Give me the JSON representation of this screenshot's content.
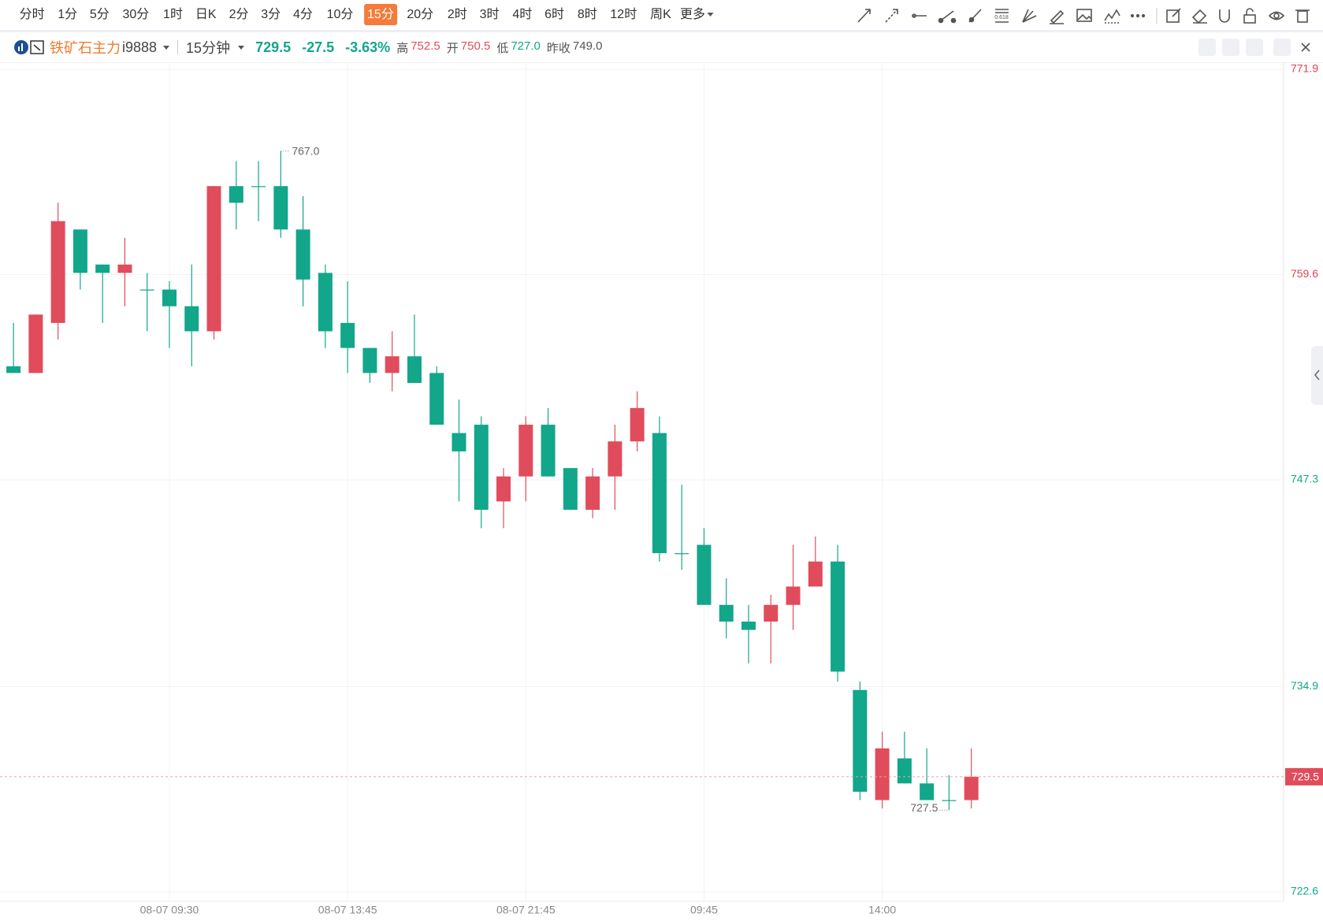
{
  "toolbar": {
    "periods": [
      "分时",
      "1分",
      "5分",
      "30分",
      "1时",
      "日K",
      "2分",
      "3分",
      "4分",
      "10分",
      "15分",
      "20分",
      "2时",
      "3时",
      "4时",
      "6时",
      "8时",
      "12时",
      "周K",
      "更多"
    ],
    "fib_icon": "0.618"
  },
  "info": {
    "name": "铁矿石主力",
    "code": "i9888",
    "period": "15分钟",
    "price": "729.5",
    "change": "-27.5",
    "change_pct": "-3.63%",
    "stats": [
      {
        "label": "高",
        "value": "752.5"
      },
      {
        "label": "开",
        "value": "750.5"
      },
      {
        "label": "低",
        "value": "727.0"
      },
      {
        "label": "昨收",
        "value": "749.0"
      }
    ]
  },
  "chart_data": {
    "type": "candlestick",
    "categories": [
      null,
      null,
      null,
      null,
      null,
      null,
      null,
      "08-07 09:30",
      null,
      null,
      null,
      null,
      null,
      null,
      null,
      "08-07 13:45",
      null,
      null,
      null,
      null,
      null,
      null,
      null,
      "08-07 21:45",
      null,
      null,
      null,
      null,
      null,
      null,
      null,
      "09:45",
      null,
      null,
      null,
      null,
      null,
      null,
      null,
      "14:00",
      null,
      null,
      null,
      null
    ],
    "open": [
      754.1,
      753.7,
      756.7,
      762.3,
      760.2,
      759.7,
      758.7,
      758.7,
      757.7,
      756.2,
      764.9,
      764.9,
      764.9,
      762.3,
      759.7,
      756.7,
      755.2,
      753.7,
      754.7,
      753.7,
      750.1,
      750.6,
      746.0,
      747.5,
      750.6,
      748.0,
      745.5,
      747.5,
      749.6,
      750.1,
      742.9,
      743.4,
      739.8,
      738.8,
      738.8,
      739.8,
      740.9,
      742.4,
      734.7,
      728.1,
      730.6,
      729.1,
      728.1,
      728.1
    ],
    "high": [
      756.7,
      757.2,
      763.9,
      762.3,
      760.2,
      761.8,
      759.7,
      759.2,
      760.2,
      764.9,
      766.4,
      766.4,
      767.0,
      764.3,
      760.2,
      759.2,
      755.2,
      756.2,
      757.2,
      754.1,
      752.1,
      751.1,
      748.0,
      751.1,
      751.6,
      748.0,
      748.0,
      750.6,
      752.6,
      751.1,
      747.0,
      744.4,
      741.4,
      739.8,
      740.4,
      743.4,
      743.9,
      743.4,
      735.2,
      732.2,
      732.2,
      731.2,
      729.6,
      731.2
    ],
    "low": [
      753.7,
      753.7,
      755.7,
      758.7,
      756.7,
      757.7,
      756.2,
      755.2,
      754.1,
      755.7,
      762.3,
      762.8,
      761.8,
      757.7,
      755.2,
      753.7,
      753.1,
      752.6,
      753.1,
      750.6,
      746.0,
      744.4,
      744.4,
      746.0,
      747.5,
      745.5,
      745.0,
      745.5,
      749.0,
      742.4,
      741.9,
      739.8,
      737.8,
      736.3,
      736.3,
      738.3,
      740.9,
      735.2,
      728.1,
      727.6,
      729.1,
      728.1,
      727.5,
      727.6
    ],
    "close": [
      753.7,
      757.2,
      762.8,
      759.7,
      759.7,
      760.2,
      758.7,
      757.7,
      756.2,
      764.9,
      763.9,
      764.9,
      762.3,
      759.3,
      756.2,
      755.2,
      753.7,
      754.7,
      753.1,
      750.6,
      749.0,
      745.5,
      747.5,
      750.6,
      747.5,
      745.5,
      747.5,
      749.6,
      751.6,
      742.9,
      742.9,
      739.8,
      738.8,
      738.3,
      739.8,
      740.9,
      742.4,
      735.8,
      728.6,
      731.2,
      729.1,
      728.1,
      728.1,
      729.5
    ],
    "up_color": "#e04c5b",
    "down_color": "#12a68a",
    "ylim": [
      722.6,
      771.9
    ],
    "yticks": [
      722.6,
      734.9,
      747.3,
      759.6,
      771.9
    ],
    "grid": true,
    "high_label": "767.0",
    "low_label": "727.5",
    "last_label": "729.5"
  }
}
